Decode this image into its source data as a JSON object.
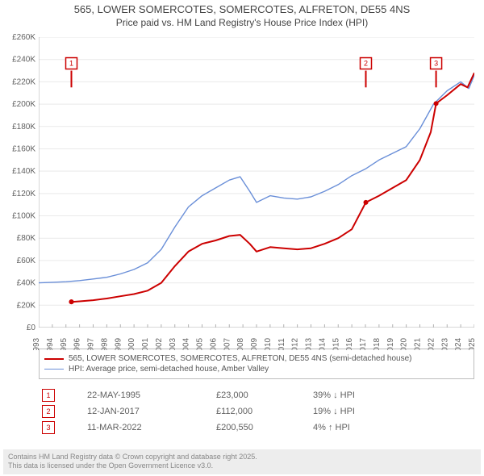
{
  "title": {
    "line1": "565, LOWER SOMERCOTES, SOMERCOTES, ALFRETON, DE55 4NS",
    "line2": "Price paid vs. HM Land Registry's House Price Index (HPI)",
    "fontsize_line1": 13,
    "fontsize_line2": 12,
    "color": "#444444"
  },
  "chart": {
    "type": "line",
    "background_color": "#ffffff",
    "grid_color": "#e9e9e9",
    "axis_color": "#b0b0b0",
    "x": {
      "min": 1993,
      "max": 2025,
      "tick_step": 1,
      "ticks": [
        1993,
        1994,
        1995,
        1996,
        1997,
        1998,
        1999,
        2000,
        2001,
        2002,
        2003,
        2004,
        2005,
        2006,
        2007,
        2008,
        2009,
        2010,
        2011,
        2012,
        2013,
        2014,
        2015,
        2016,
        2017,
        2018,
        2019,
        2020,
        2021,
        2022,
        2023,
        2024,
        2025
      ],
      "label_fontsize": 10,
      "rotation": -90
    },
    "y": {
      "min": 0,
      "max": 260000,
      "tick_step": 20000,
      "ticks": [
        0,
        20000,
        40000,
        60000,
        80000,
        100000,
        120000,
        140000,
        160000,
        180000,
        200000,
        220000,
        240000,
        260000
      ],
      "tick_labels": [
        "£0",
        "£20K",
        "£40K",
        "£60K",
        "£80K",
        "£100K",
        "£120K",
        "£140K",
        "£160K",
        "£180K",
        "£200K",
        "£220K",
        "£240K",
        "£260K"
      ],
      "label_fontsize": 10
    },
    "series": [
      {
        "id": "price_paid",
        "label": "565, LOWER SOMERCOTES, SOMERCOTES, ALFRETON, DE55 4NS (semi-detached house)",
        "color": "#cc0000",
        "line_width": 2,
        "data": [
          [
            1995.4,
            23000
          ],
          [
            1996.0,
            23500
          ],
          [
            1997.0,
            24500
          ],
          [
            1998.0,
            26000
          ],
          [
            1999.0,
            28000
          ],
          [
            2000.0,
            30000
          ],
          [
            2001.0,
            33000
          ],
          [
            2002.0,
            40000
          ],
          [
            2003.0,
            55000
          ],
          [
            2004.0,
            68000
          ],
          [
            2005.0,
            75000
          ],
          [
            2006.0,
            78000
          ],
          [
            2007.0,
            82000
          ],
          [
            2007.8,
            83000
          ],
          [
            2008.5,
            75000
          ],
          [
            2009.0,
            68000
          ],
          [
            2010.0,
            72000
          ],
          [
            2011.0,
            71000
          ],
          [
            2012.0,
            70000
          ],
          [
            2013.0,
            71000
          ],
          [
            2014.0,
            75000
          ],
          [
            2015.0,
            80000
          ],
          [
            2016.0,
            88000
          ],
          [
            2017.03,
            112000
          ],
          [
            2018.0,
            118000
          ],
          [
            2019.0,
            125000
          ],
          [
            2020.0,
            132000
          ],
          [
            2021.0,
            150000
          ],
          [
            2021.8,
            175000
          ],
          [
            2022.19,
            200550
          ],
          [
            2023.0,
            208000
          ],
          [
            2024.0,
            218000
          ],
          [
            2024.5,
            215000
          ],
          [
            2025.0,
            228000
          ]
        ]
      },
      {
        "id": "hpi",
        "label": "HPI: Average price, semi-detached house, Amber Valley",
        "color": "#6a8fd8",
        "line_width": 1.4,
        "data": [
          [
            1993.0,
            40000
          ],
          [
            1994.0,
            40500
          ],
          [
            1995.0,
            41000
          ],
          [
            1996.0,
            42000
          ],
          [
            1997.0,
            43500
          ],
          [
            1998.0,
            45000
          ],
          [
            1999.0,
            48000
          ],
          [
            2000.0,
            52000
          ],
          [
            2001.0,
            58000
          ],
          [
            2002.0,
            70000
          ],
          [
            2003.0,
            90000
          ],
          [
            2004.0,
            108000
          ],
          [
            2005.0,
            118000
          ],
          [
            2006.0,
            125000
          ],
          [
            2007.0,
            132000
          ],
          [
            2007.8,
            135000
          ],
          [
            2008.5,
            122000
          ],
          [
            2009.0,
            112000
          ],
          [
            2010.0,
            118000
          ],
          [
            2011.0,
            116000
          ],
          [
            2012.0,
            115000
          ],
          [
            2013.0,
            117000
          ],
          [
            2014.0,
            122000
          ],
          [
            2015.0,
            128000
          ],
          [
            2016.0,
            136000
          ],
          [
            2017.0,
            142000
          ],
          [
            2018.0,
            150000
          ],
          [
            2019.0,
            156000
          ],
          [
            2020.0,
            162000
          ],
          [
            2021.0,
            178000
          ],
          [
            2022.0,
            200000
          ],
          [
            2023.0,
            212000
          ],
          [
            2024.0,
            220000
          ],
          [
            2024.6,
            214000
          ],
          [
            2025.0,
            226000
          ]
        ]
      }
    ],
    "markers": [
      {
        "num": "1",
        "x": 1995.4,
        "color": "#cc0000",
        "date": "22-MAY-1995",
        "price": "£23,000",
        "delta": "39% ↓ HPI"
      },
      {
        "num": "2",
        "x": 2017.03,
        "color": "#cc0000",
        "date": "12-JAN-2017",
        "price": "£112,000",
        "delta": "19% ↓ HPI"
      },
      {
        "num": "3",
        "x": 2022.19,
        "color": "#cc0000",
        "date": "11-MAR-2022",
        "price": "£200,550",
        "delta": "4% ↑ HPI"
      }
    ],
    "marker_tick_color": "#cc0000",
    "marker_tick_top_y": 230000,
    "marker_tick_bot_y": 215000,
    "marker_dot_radius": 3
  },
  "legend": {
    "border_color": "#bdbdbd",
    "fontsize": 10,
    "items": [
      {
        "color": "#cc0000",
        "label": "565, LOWER SOMERCOTES, SOMERCOTES, ALFRETON, DE55 4NS (semi-detached house)"
      },
      {
        "color": "#6a8fd8",
        "label": "HPI: Average price, semi-detached house, Amber Valley"
      }
    ]
  },
  "footer": {
    "line1": "Contains HM Land Registry data © Crown copyright and database right 2025.",
    "line2": "This data is licensed under the Open Government Licence v3.0.",
    "bg": "#ededed",
    "color": "#888888",
    "fontsize": 9
  }
}
